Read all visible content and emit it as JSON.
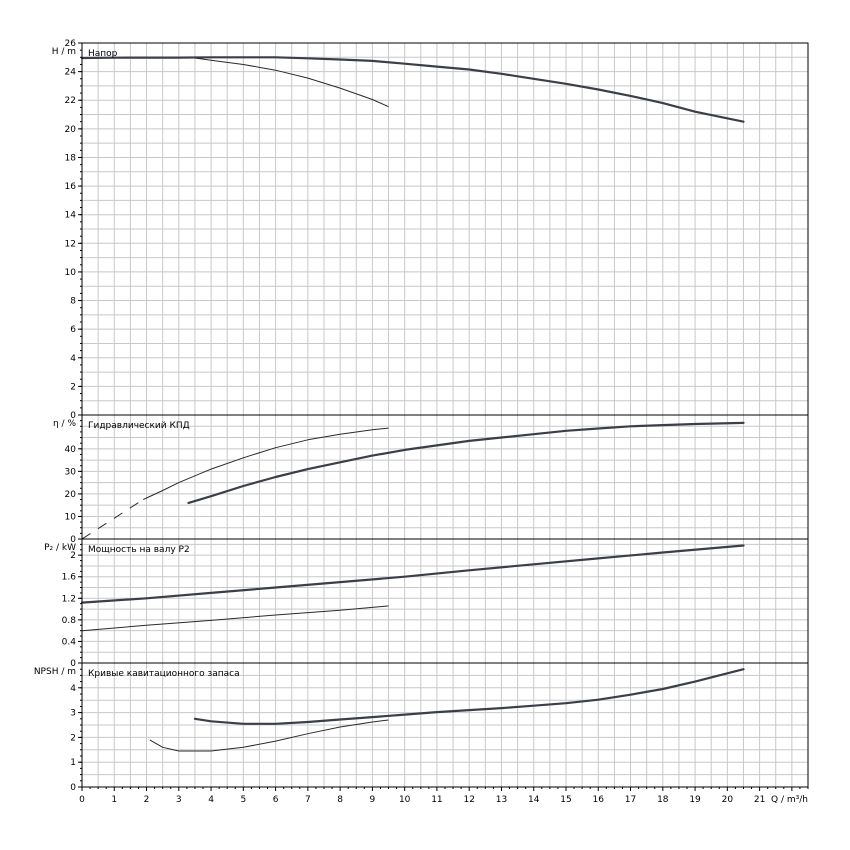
{
  "chart_data": {
    "type": "line",
    "x": {
      "label": "Q / m³/h",
      "range": [
        0,
        22.5
      ],
      "ticks": [
        "0",
        "1",
        "2",
        "3",
        "4",
        "5",
        "6",
        "7",
        "8",
        "9",
        "10",
        "11",
        "12",
        "13",
        "14",
        "15",
        "16",
        "17",
        "18",
        "19",
        "20",
        "21"
      ]
    },
    "panels": [
      {
        "id": "head",
        "title": "Напор",
        "ylabel": "H / m",
        "ylim": [
          0,
          26
        ],
        "yticks": [
          "0",
          "2",
          "4",
          "6",
          "8",
          "10",
          "12",
          "14",
          "16",
          "18",
          "20",
          "22",
          "24",
          "26"
        ],
        "series": [
          {
            "style": "thick",
            "points": [
              [
                0,
                24.95
              ],
              [
                1,
                24.97
              ],
              [
                2,
                24.98
              ],
              [
                3,
                24.98
              ],
              [
                4,
                25.0
              ],
              [
                5,
                25.0
              ],
              [
                6,
                25.0
              ],
              [
                7,
                24.93
              ],
              [
                8,
                24.85
              ],
              [
                9,
                24.75
              ],
              [
                10,
                24.55
              ],
              [
                11,
                24.35
              ],
              [
                12,
                24.15
              ],
              [
                13,
                23.85
              ],
              [
                14,
                23.5
              ],
              [
                15,
                23.15
              ],
              [
                16,
                22.75
              ],
              [
                17,
                22.3
              ],
              [
                18,
                21.8
              ],
              [
                19,
                21.2
              ],
              [
                20.5,
                20.5
              ]
            ]
          },
          {
            "style": "thin",
            "points": [
              [
                3.5,
                24.95
              ],
              [
                4,
                24.8
              ],
              [
                5,
                24.5
              ],
              [
                6,
                24.1
              ],
              [
                7,
                23.55
              ],
              [
                8,
                22.85
              ],
              [
                9,
                22.05
              ],
              [
                9.5,
                21.55
              ]
            ]
          }
        ]
      },
      {
        "id": "efficiency",
        "title": "Гидравлический КПД",
        "ylabel": "η / %",
        "ylim": [
          0,
          55
        ],
        "yticks": [
          "0",
          "10",
          "20",
          "30",
          "40"
        ],
        "series": [
          {
            "style": "thick",
            "points": [
              [
                3.3,
                16
              ],
              [
                4,
                19
              ],
              [
                5,
                23.5
              ],
              [
                6,
                27.5
              ],
              [
                7,
                31
              ],
              [
                8,
                34
              ],
              [
                9,
                37
              ],
              [
                10,
                39.5
              ],
              [
                11,
                41.5
              ],
              [
                12,
                43.5
              ],
              [
                13,
                45
              ],
              [
                14,
                46.5
              ],
              [
                15,
                48
              ],
              [
                16,
                49
              ],
              [
                17,
                50
              ],
              [
                18,
                50.5
              ],
              [
                19,
                51
              ],
              [
                20.5,
                51.5
              ]
            ]
          },
          {
            "style": "thin",
            "points": [
              [
                1.9,
                17.5
              ],
              [
                2.5,
                21.5
              ],
              [
                3,
                25
              ],
              [
                4,
                31
              ],
              [
                5,
                36
              ],
              [
                6,
                40.5
              ],
              [
                7,
                44
              ],
              [
                8,
                46.5
              ],
              [
                9,
                48.5
              ],
              [
                9.5,
                49.2
              ]
            ]
          },
          {
            "style": "dashed",
            "points": [
              [
                0,
                0
              ],
              [
                1.9,
                17.5
              ]
            ]
          }
        ]
      },
      {
        "id": "power",
        "title": "Мощность на валу P2",
        "ylabel": "P₂ / kW",
        "ylim": [
          0,
          2.3
        ],
        "yticks": [
          "0",
          "0.4",
          "0.8",
          "1.2",
          "1.6",
          "2"
        ],
        "series": [
          {
            "style": "thick",
            "points": [
              [
                0,
                1.12
              ],
              [
                2,
                1.2
              ],
              [
                4,
                1.3
              ],
              [
                6,
                1.4
              ],
              [
                8,
                1.5
              ],
              [
                10,
                1.6
              ],
              [
                12,
                1.72
              ],
              [
                14,
                1.83
              ],
              [
                16,
                1.94
              ],
              [
                18,
                2.05
              ],
              [
                20.5,
                2.18
              ]
            ]
          },
          {
            "style": "thin",
            "points": [
              [
                0,
                0.6
              ],
              [
                2,
                0.7
              ],
              [
                4,
                0.79
              ],
              [
                6,
                0.89
              ],
              [
                8,
                0.98
              ],
              [
                9.5,
                1.06
              ]
            ]
          }
        ]
      },
      {
        "id": "npsh",
        "title": "Кривые кавитационного запаса",
        "ylabel": "NPSH / m",
        "ylim": [
          0,
          5
        ],
        "yticks": [
          "0",
          "1",
          "2",
          "3",
          "4"
        ],
        "series": [
          {
            "style": "thick",
            "points": [
              [
                3.5,
                2.75
              ],
              [
                4,
                2.65
              ],
              [
                5,
                2.55
              ],
              [
                6,
                2.55
              ],
              [
                7,
                2.62
              ],
              [
                8,
                2.72
              ],
              [
                9,
                2.82
              ],
              [
                10,
                2.92
              ],
              [
                11,
                3.02
              ],
              [
                12,
                3.1
              ],
              [
                13,
                3.18
              ],
              [
                14,
                3.28
              ],
              [
                15,
                3.38
              ],
              [
                16,
                3.52
              ],
              [
                17,
                3.72
              ],
              [
                18,
                3.95
              ],
              [
                19,
                4.25
              ],
              [
                20.5,
                4.75
              ]
            ]
          },
          {
            "style": "thin",
            "points": [
              [
                2.1,
                1.9
              ],
              [
                2.5,
                1.6
              ],
              [
                3,
                1.45
              ],
              [
                4,
                1.45
              ],
              [
                5,
                1.6
              ],
              [
                6,
                1.85
              ],
              [
                7,
                2.15
              ],
              [
                8,
                2.42
              ],
              [
                9,
                2.62
              ],
              [
                9.5,
                2.7
              ]
            ]
          }
        ]
      }
    ]
  }
}
